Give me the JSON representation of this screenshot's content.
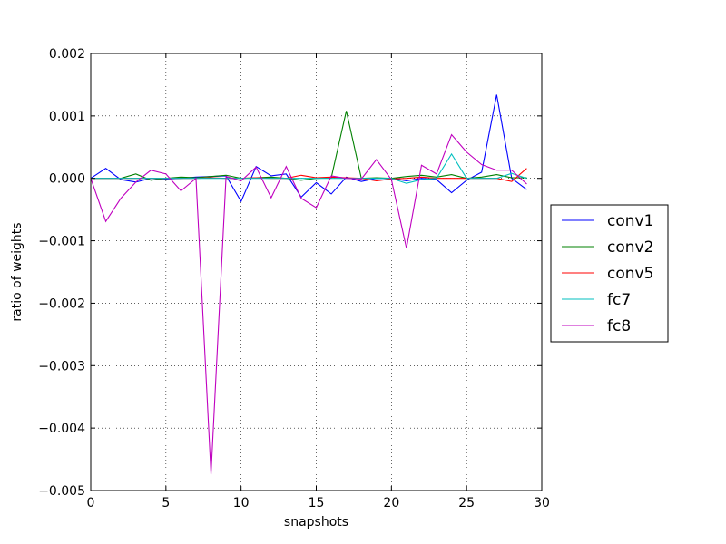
{
  "chart_data": {
    "type": "line",
    "title": "",
    "xlabel": "snapshots",
    "ylabel": "ratio of weights",
    "xlim": [
      0,
      30
    ],
    "ylim": [
      -0.005,
      0.002
    ],
    "xticks": [
      0,
      5,
      10,
      15,
      20,
      25,
      30
    ],
    "xtick_labels": [
      "0",
      "5",
      "10",
      "15",
      "20",
      "25",
      "30"
    ],
    "yticks": [
      0.002,
      0.001,
      0.0,
      -0.001,
      -0.002,
      -0.003,
      -0.004,
      -0.005
    ],
    "ytick_labels": [
      "0.002",
      "0.001",
      "0.000",
      "−0.001",
      "−0.002",
      "−0.003",
      "−0.004",
      "−0.005"
    ],
    "grid": true,
    "legend_position": "outside-right",
    "x": [
      0,
      1,
      2,
      3,
      4,
      5,
      6,
      7,
      8,
      9,
      10,
      11,
      12,
      13,
      14,
      15,
      16,
      17,
      18,
      19,
      20,
      21,
      22,
      23,
      24,
      25,
      26,
      27,
      28,
      29
    ],
    "series": [
      {
        "name": "conv1",
        "color": "#0000ff",
        "values": [
          0.0,
          0.00016,
          -2e-05,
          -6e-05,
          0.0,
          -1e-05,
          0.0,
          2e-05,
          3e-05,
          4e-05,
          -0.00037,
          0.00019,
          4e-05,
          7e-05,
          -0.0003,
          -7e-05,
          -0.00025,
          2e-05,
          -5e-05,
          0.0,
          0.0,
          -4e-05,
          0.0,
          -2e-05,
          -0.00023,
          -3e-05,
          0.0001,
          0.00134,
          0.0,
          -0.00018
        ]
      },
      {
        "name": "conv2",
        "color": "#008000",
        "values": [
          0.0,
          0.0,
          0.0,
          7e-05,
          -3e-05,
          0.0,
          2e-05,
          1e-05,
          3e-05,
          5e-05,
          0.0,
          1e-05,
          2e-05,
          0.0,
          -3e-05,
          0.0,
          1e-05,
          0.00108,
          0.0,
          1e-05,
          0.0,
          3e-05,
          5e-05,
          2e-05,
          6e-05,
          0.0,
          2e-05,
          6e-05,
          1e-05,
          1e-05
        ]
      },
      {
        "name": "conv5",
        "color": "#ff0000",
        "values": [
          0.0,
          0.0,
          0.0,
          0.0,
          0.0,
          0.0,
          0.0,
          0.0,
          1e-05,
          0.0,
          0.0,
          1e-05,
          0.0,
          0.0,
          5e-05,
          1e-05,
          2e-05,
          1e-05,
          0.0,
          -4e-05,
          -1e-05,
          0.0,
          2e-05,
          0.0,
          0.0,
          0.0,
          0.0,
          0.0,
          -5e-05,
          0.00016
        ]
      },
      {
        "name": "fc7",
        "color": "#00bfbf",
        "values": [
          0.0,
          0.0,
          0.0,
          0.0,
          0.0,
          0.0,
          0.0,
          0.0,
          0.0,
          0.0,
          0.0,
          0.0,
          0.0,
          0.0,
          0.0,
          0.0,
          0.0,
          0.0,
          0.0,
          0.0,
          0.0,
          -8e-05,
          -2e-05,
          0.0,
          0.00039,
          0.0,
          0.0,
          0.0,
          8e-05,
          0.0
        ]
      },
      {
        "name": "fc8",
        "color": "#bf00bf",
        "values": [
          0.0,
          -0.00069,
          -0.00032,
          -6e-05,
          0.00013,
          7e-05,
          -0.0002,
          0.0,
          -0.00474,
          3e-05,
          -4e-05,
          0.00018,
          -0.00031,
          0.00019,
          -0.00032,
          -0.00047,
          4e-05,
          0.0,
          -1e-05,
          0.0003,
          -2e-05,
          -0.00112,
          0.00021,
          7e-05,
          0.0007,
          0.00042,
          0.00022,
          0.00013,
          0.00013,
          -9e-05
        ]
      }
    ]
  }
}
